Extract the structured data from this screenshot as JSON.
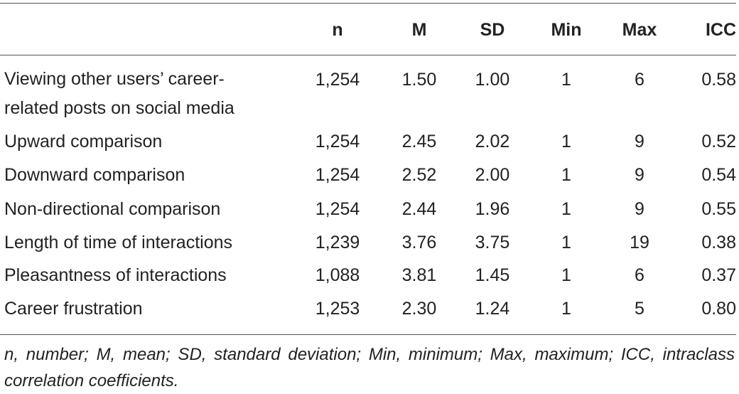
{
  "table": {
    "headers": [
      "",
      "n",
      "M",
      "SD",
      "Min",
      "Max",
      "ICC"
    ],
    "rows": [
      {
        "label_line1": "Viewing other users’ career-",
        "label_line2": "related posts on social media",
        "n": "1,254",
        "m": "1.50",
        "sd": "1.00",
        "min": "1",
        "max": "6",
        "icc": "0.58"
      },
      {
        "label_line1": "Upward comparison",
        "n": "1,254",
        "m": "2.45",
        "sd": "2.02",
        "min": "1",
        "max": "9",
        "icc": "0.52"
      },
      {
        "label_line1": "Downward comparison",
        "n": "1,254",
        "m": "2.52",
        "sd": "2.00",
        "min": "1",
        "max": "9",
        "icc": "0.54"
      },
      {
        "label_line1": "Non-directional comparison",
        "n": "1,254",
        "m": "2.44",
        "sd": "1.96",
        "min": "1",
        "max": "9",
        "icc": "0.55"
      },
      {
        "label_line1": "Length of time of interactions",
        "n": "1,239",
        "m": "3.76",
        "sd": "3.75",
        "min": "1",
        "max": "19",
        "icc": "0.38"
      },
      {
        "label_line1": "Pleasantness of interactions",
        "n": "1,088",
        "m": "3.81",
        "sd": "1.45",
        "min": "1",
        "max": "6",
        "icc": "0.37"
      },
      {
        "label_line1": "Career frustration",
        "n": "1,253",
        "m": "2.30",
        "sd": "1.24",
        "min": "1",
        "max": "5",
        "icc": "0.80"
      }
    ],
    "footnote": "n, number; M, mean; SD, standard deviation; Min, minimum; Max, maximum; ICC, intraclass correlation coefficients."
  }
}
